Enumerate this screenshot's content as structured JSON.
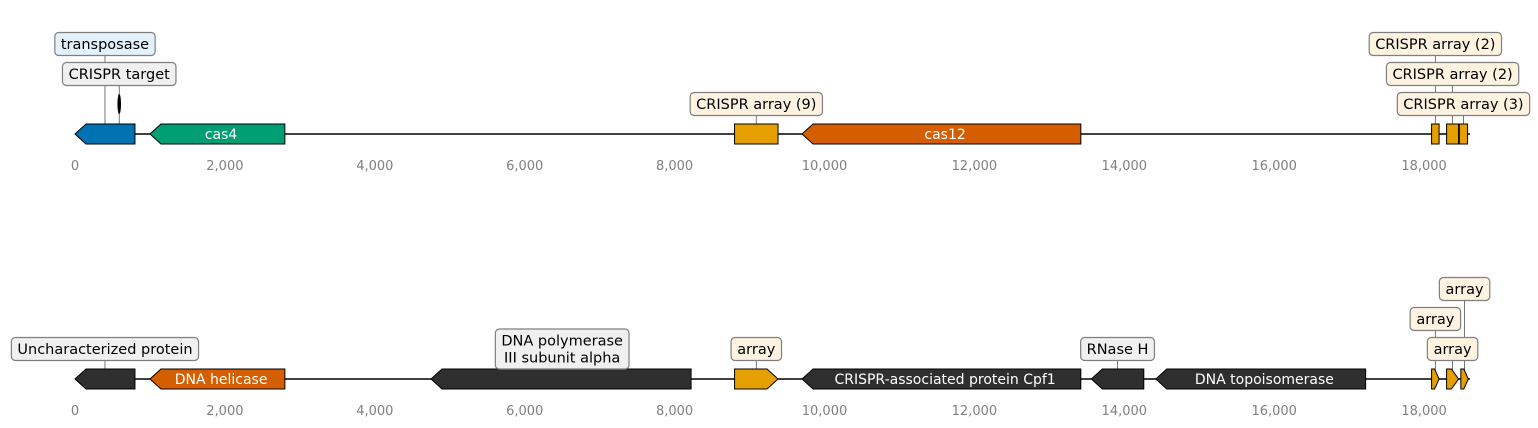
{
  "axis": {
    "tick_labels": [
      "0",
      "2,000",
      "4,000",
      "6,000",
      "8,000",
      "10,000",
      "12,000",
      "14,000",
      "16,000",
      "18,000"
    ],
    "tick_values": [
      0,
      2000,
      4000,
      6000,
      8000,
      10000,
      12000,
      14000,
      16000,
      18000
    ]
  },
  "colors": {
    "blue": "#0072b2",
    "green": "#009e73",
    "gold": "#e69f00",
    "orange": "#d55e00",
    "dark": "#2f2f2f",
    "callout_white": "#f0f0f0",
    "callout_cream": "#fdf3e0",
    "callout_blue": "#e3f1fc",
    "callout_border": "#7f7f7f",
    "tick": "#808080",
    "backbone": "#000000"
  },
  "tracks": [
    {
      "name": "top-track",
      "features": [
        {
          "start": 0,
          "end": 800,
          "strand": -1,
          "color": "blue",
          "label": ""
        },
        {
          "start": 1000,
          "end": 2800,
          "strand": -1,
          "color": "green",
          "label": "cas4"
        },
        {
          "start": 8800,
          "end": 9380,
          "strand": 0,
          "color": "gold",
          "label": ""
        },
        {
          "start": 9700,
          "end": 13420,
          "strand": -1,
          "color": "orange",
          "label": "cas12"
        },
        {
          "start": 18100,
          "end": 18200,
          "strand": 0,
          "color": "gold",
          "label": ""
        },
        {
          "start": 18300,
          "end": 18460,
          "strand": 0,
          "color": "gold",
          "label": ""
        },
        {
          "start": 18470,
          "end": 18580,
          "strand": 0,
          "color": "gold",
          "label": ""
        }
      ],
      "small_mark": {
        "position": 590
      },
      "callouts": [
        {
          "text": "transposase",
          "at": 400,
          "box": "callout_blue",
          "row": 3
        },
        {
          "text": "CRISPR target",
          "at": 590,
          "box": "callout_white",
          "row": 2
        },
        {
          "text": "CRISPR array (9)",
          "at": 9090,
          "box": "callout_cream",
          "row": 1
        },
        {
          "text": "CRISPR array (2)",
          "at": 18150,
          "box": "callout_cream",
          "row": 3
        },
        {
          "text": "CRISPR array (2)",
          "at": 18380,
          "box": "callout_cream",
          "row": 2
        },
        {
          "text": "CRISPR array (3)",
          "at": 18525,
          "box": "callout_cream",
          "row": 1
        }
      ]
    },
    {
      "name": "bottom-track",
      "features": [
        {
          "start": 0,
          "end": 800,
          "strand": -1,
          "color": "dark",
          "label": ""
        },
        {
          "start": 1000,
          "end": 2800,
          "strand": -1,
          "color": "orange",
          "label": "DNA helicase"
        },
        {
          "start": 4750,
          "end": 8220,
          "strand": -1,
          "color": "dark",
          "label": ""
        },
        {
          "start": 8800,
          "end": 9380,
          "strand": 1,
          "color": "gold",
          "label": ""
        },
        {
          "start": 9700,
          "end": 13420,
          "strand": -1,
          "color": "dark",
          "label": "CRISPR-associated protein Cpf1"
        },
        {
          "start": 13560,
          "end": 14260,
          "strand": -1,
          "color": "dark",
          "label": ""
        },
        {
          "start": 14420,
          "end": 17220,
          "strand": -1,
          "color": "dark",
          "label": "DNA topoisomerase"
        },
        {
          "start": 18100,
          "end": 18200,
          "strand": 1,
          "color": "gold",
          "label": ""
        },
        {
          "start": 18300,
          "end": 18460,
          "strand": 1,
          "color": "gold",
          "label": ""
        },
        {
          "start": 18490,
          "end": 18590,
          "strand": 1,
          "color": "gold",
          "label": ""
        }
      ],
      "callouts": [
        {
          "text": "Uncharacterized protein",
          "at": 400,
          "box": "callout_white",
          "row": 1
        },
        {
          "text": "DNA polymerase\nIII subunit alpha",
          "at": 6500,
          "box": "callout_white",
          "row": 1
        },
        {
          "text": "array",
          "at": 9090,
          "box": "callout_cream",
          "row": 1
        },
        {
          "text": "RNase H",
          "at": 13910,
          "box": "callout_white",
          "row": 1
        },
        {
          "text": "array",
          "at": 18150,
          "box": "callout_cream",
          "row": 2
        },
        {
          "text": "array",
          "at": 18380,
          "box": "callout_cream",
          "row": 1
        },
        {
          "text": "array",
          "at": 18540,
          "box": "callout_cream",
          "row": 3
        }
      ]
    }
  ]
}
